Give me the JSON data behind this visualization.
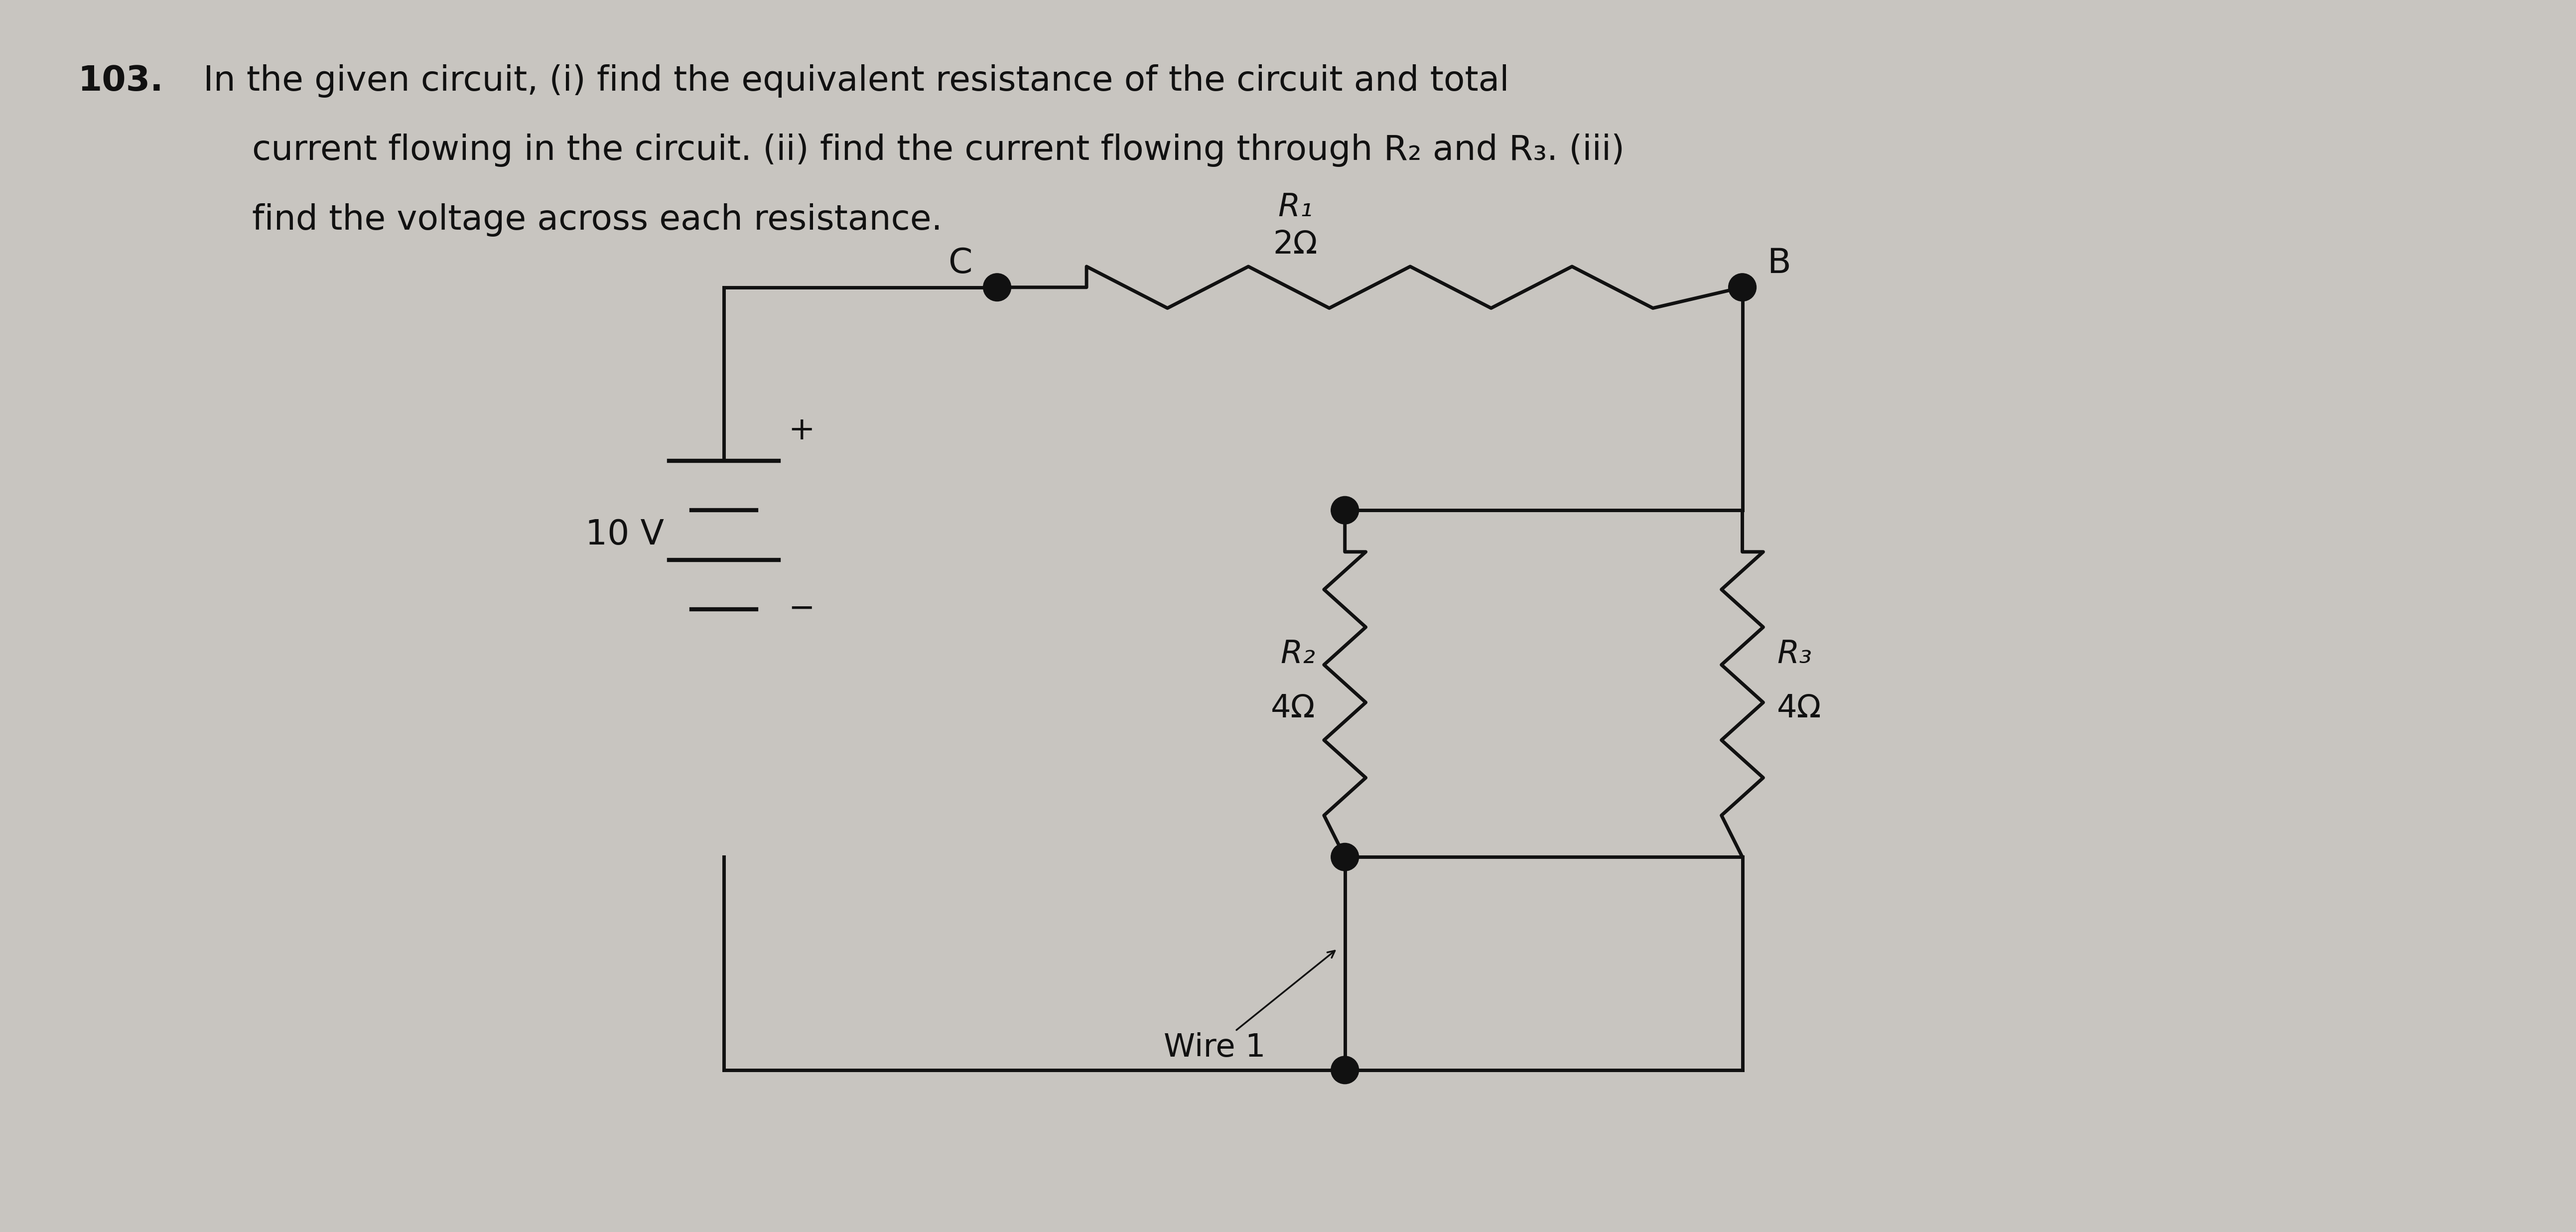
{
  "title_num": "103.",
  "title_text": " In the given circuit, (i) find the equivalent resistance of the circuit and total",
  "line2": "current flowing in the circuit. (ii) find the current flowing through R₂ and R₃. (iii)",
  "line3": "find the voltage across each resistance.",
  "bg_color": "#c8c5c0",
  "text_color": "#111111",
  "R1_label": "R₁",
  "R1_val": "2Ω",
  "R2_label": "R₂",
  "R2_val": "4Ω",
  "R3_label": "R₃",
  "R3_val": "4Ω",
  "V_label": "10 V",
  "node_C": "C",
  "node_B": "B",
  "wire1_label": "Wire 1",
  "plus_label": "+",
  "minus_label": "−"
}
